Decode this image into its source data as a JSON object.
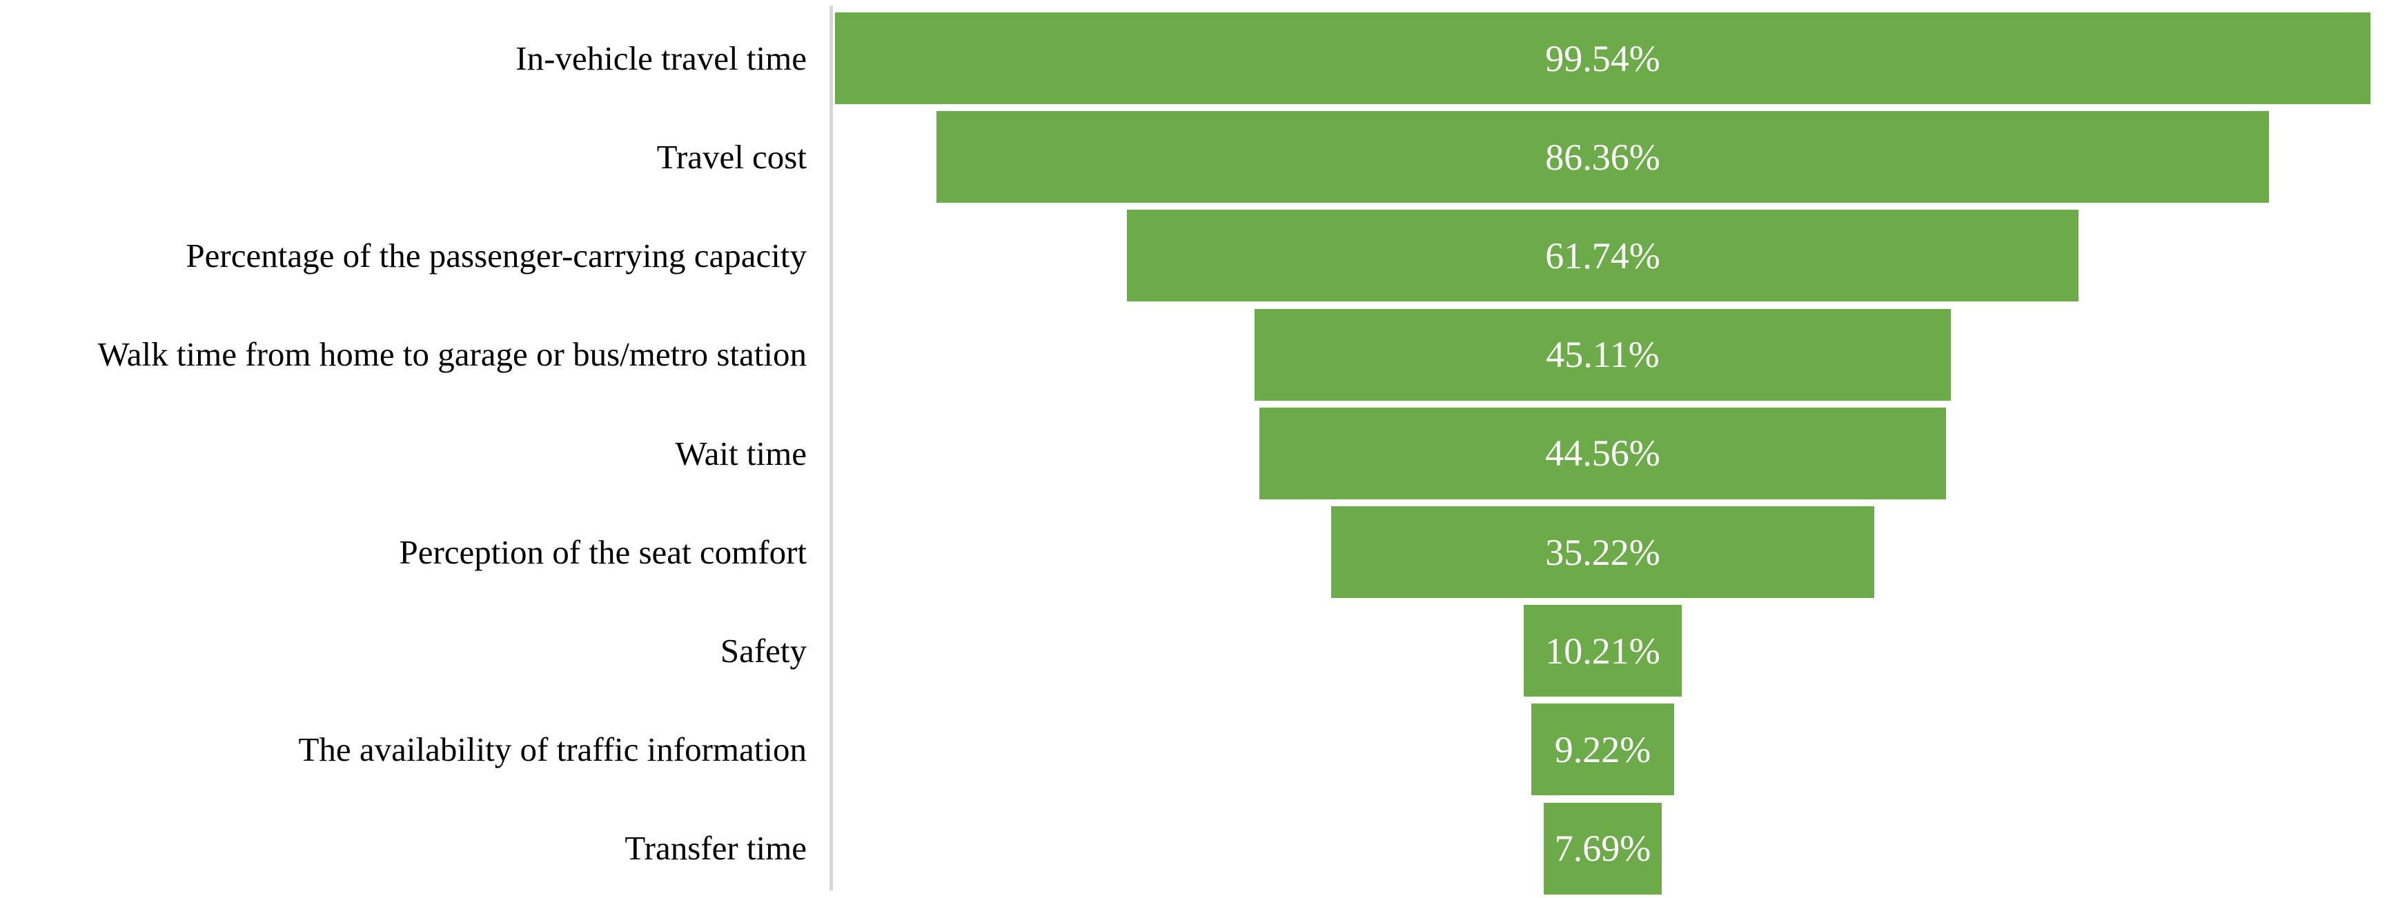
{
  "chart_data": {
    "type": "bar",
    "variant": "centered-funnel",
    "orientation": "horizontal",
    "categories": [
      "In-vehicle travel time",
      "Travel cost",
      "Percentage of the passenger-carrying capacity",
      "Walk time from home to garage or bus/metro station",
      "Wait time",
      "Perception of the seat comfort",
      "Safety",
      "The availability of traffic information",
      "Transfer time"
    ],
    "values": [
      99.54,
      86.36,
      61.74,
      45.11,
      44.56,
      35.22,
      10.21,
      9.22,
      7.69
    ],
    "value_labels": [
      "99.54%",
      "86.36%",
      "61.74%",
      "45.11%",
      "44.56%",
      "35.22%",
      "10.21%",
      "9.22%",
      "7.69%"
    ],
    "value_label_position": "inside-center",
    "xlim": [
      0,
      100
    ],
    "grid": false,
    "legend": false,
    "colors": {
      "bar": "#6dab4a",
      "bar_text": "#ffffff",
      "category_text": "#000000",
      "axis_line": "#d8d8d8",
      "background": "#ffffff"
    }
  }
}
